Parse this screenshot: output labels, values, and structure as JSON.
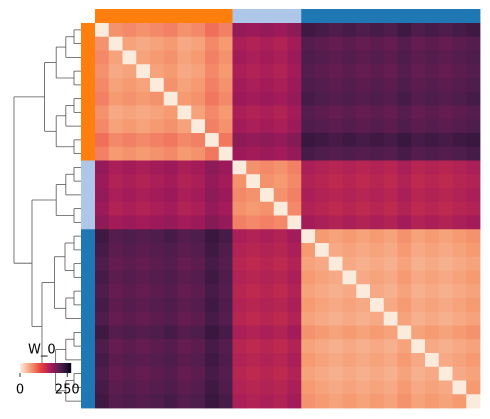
{
  "chart_data": {
    "type": "heatmap",
    "colorbar_label": "W_0",
    "clim": [
      0,
      270
    ],
    "cticks": [
      0,
      250
    ],
    "colormap": [
      "#faebdd",
      "#f69c73",
      "#e83f3f",
      "#a11a5b",
      "#4c1d4b",
      "#03051a"
    ],
    "row_colors": [
      "#ff7f0e",
      "#ff7f0e",
      "#ff7f0e",
      "#ff7f0e",
      "#ff7f0e",
      "#ff7f0e",
      "#ff7f0e",
      "#ff7f0e",
      "#ff7f0e",
      "#ff7f0e",
      "#aec7e8",
      "#aec7e8",
      "#aec7e8",
      "#aec7e8",
      "#aec7e8",
      "#1f77b4",
      "#1f77b4",
      "#1f77b4",
      "#1f77b4",
      "#1f77b4",
      "#1f77b4",
      "#1f77b4",
      "#1f77b4",
      "#1f77b4",
      "#1f77b4",
      "#1f77b4",
      "#1f77b4",
      "#1f77b4"
    ],
    "matrix": [
      [
        0,
        60,
        65,
        60,
        65,
        70,
        60,
        65,
        80,
        70,
        170,
        165,
        170,
        165,
        175,
        225,
        220,
        215,
        220,
        215,
        220,
        215,
        225,
        215,
        220,
        215,
        220,
        225
      ],
      [
        60,
        0,
        50,
        45,
        50,
        55,
        45,
        50,
        65,
        55,
        155,
        150,
        155,
        150,
        160,
        210,
        205,
        200,
        205,
        200,
        205,
        200,
        210,
        200,
        205,
        200,
        205,
        210
      ],
      [
        65,
        50,
        0,
        50,
        55,
        60,
        50,
        55,
        70,
        60,
        160,
        155,
        160,
        155,
        165,
        215,
        210,
        205,
        210,
        205,
        210,
        205,
        215,
        205,
        210,
        205,
        210,
        215
      ],
      [
        60,
        45,
        50,
        0,
        50,
        55,
        45,
        50,
        65,
        55,
        155,
        150,
        155,
        150,
        160,
        210,
        205,
        200,
        205,
        200,
        205,
        200,
        210,
        200,
        205,
        200,
        205,
        210
      ],
      [
        65,
        50,
        55,
        50,
        0,
        60,
        50,
        55,
        70,
        60,
        160,
        155,
        160,
        155,
        165,
        215,
        210,
        205,
        210,
        205,
        210,
        205,
        215,
        205,
        210,
        205,
        210,
        215
      ],
      [
        70,
        55,
        60,
        55,
        60,
        0,
        55,
        60,
        75,
        65,
        165,
        160,
        165,
        160,
        170,
        220,
        215,
        210,
        215,
        210,
        215,
        210,
        220,
        210,
        215,
        210,
        215,
        220
      ],
      [
        60,
        45,
        50,
        45,
        50,
        55,
        0,
        50,
        65,
        55,
        155,
        150,
        155,
        150,
        160,
        210,
        205,
        200,
        205,
        200,
        205,
        200,
        210,
        200,
        205,
        200,
        205,
        210
      ],
      [
        65,
        50,
        55,
        50,
        55,
        60,
        50,
        0,
        70,
        60,
        160,
        155,
        160,
        155,
        165,
        215,
        210,
        205,
        210,
        205,
        210,
        205,
        215,
        205,
        210,
        205,
        210,
        215
      ],
      [
        80,
        65,
        70,
        65,
        70,
        75,
        65,
        70,
        0,
        75,
        175,
        170,
        175,
        170,
        180,
        230,
        225,
        220,
        225,
        220,
        225,
        220,
        230,
        220,
        225,
        220,
        225,
        230
      ],
      [
        70,
        55,
        60,
        55,
        60,
        65,
        55,
        60,
        75,
        0,
        165,
        160,
        165,
        160,
        170,
        220,
        215,
        210,
        215,
        210,
        215,
        210,
        220,
        210,
        215,
        210,
        215,
        220
      ],
      [
        170,
        155,
        160,
        155,
        160,
        165,
        155,
        160,
        175,
        165,
        0,
        60,
        65,
        60,
        70,
        155,
        150,
        145,
        150,
        145,
        150,
        145,
        155,
        145,
        150,
        145,
        150,
        155
      ],
      [
        165,
        150,
        155,
        150,
        155,
        160,
        150,
        155,
        170,
        160,
        60,
        0,
        60,
        55,
        65,
        150,
        145,
        140,
        145,
        140,
        145,
        140,
        150,
        140,
        145,
        140,
        145,
        150
      ],
      [
        170,
        155,
        160,
        155,
        160,
        165,
        155,
        160,
        175,
        165,
        65,
        60,
        0,
        60,
        70,
        155,
        150,
        145,
        150,
        145,
        150,
        145,
        155,
        145,
        150,
        145,
        150,
        155
      ],
      [
        165,
        150,
        155,
        150,
        155,
        160,
        150,
        155,
        170,
        160,
        60,
        55,
        60,
        0,
        65,
        150,
        145,
        140,
        145,
        140,
        145,
        140,
        150,
        140,
        145,
        140,
        145,
        150
      ],
      [
        175,
        160,
        165,
        160,
        165,
        170,
        160,
        165,
        180,
        170,
        70,
        65,
        70,
        65,
        0,
        160,
        155,
        150,
        155,
        150,
        155,
        150,
        160,
        150,
        155,
        150,
        155,
        160
      ],
      [
        225,
        210,
        215,
        210,
        215,
        220,
        210,
        215,
        230,
        220,
        155,
        150,
        155,
        150,
        160,
        0,
        55,
        50,
        55,
        50,
        55,
        50,
        60,
        50,
        55,
        50,
        55,
        60
      ],
      [
        220,
        205,
        210,
        205,
        210,
        215,
        205,
        210,
        225,
        215,
        150,
        145,
        150,
        145,
        155,
        55,
        0,
        45,
        50,
        45,
        50,
        45,
        55,
        45,
        50,
        45,
        50,
        55
      ],
      [
        215,
        200,
        205,
        200,
        205,
        210,
        200,
        205,
        220,
        210,
        145,
        140,
        145,
        140,
        150,
        50,
        45,
        0,
        45,
        40,
        45,
        40,
        50,
        40,
        45,
        40,
        45,
        50
      ],
      [
        220,
        205,
        210,
        205,
        210,
        215,
        205,
        210,
        225,
        215,
        150,
        145,
        150,
        145,
        155,
        55,
        50,
        45,
        0,
        45,
        50,
        45,
        55,
        45,
        50,
        45,
        50,
        55
      ],
      [
        215,
        200,
        205,
        200,
        205,
        210,
        200,
        205,
        220,
        210,
        145,
        140,
        145,
        140,
        150,
        50,
        45,
        40,
        45,
        0,
        45,
        40,
        50,
        40,
        45,
        40,
        45,
        50
      ],
      [
        220,
        205,
        210,
        205,
        210,
        215,
        205,
        210,
        225,
        215,
        150,
        145,
        150,
        145,
        155,
        55,
        50,
        45,
        50,
        45,
        0,
        45,
        55,
        45,
        50,
        45,
        50,
        55
      ],
      [
        215,
        200,
        205,
        200,
        205,
        210,
        200,
        205,
        220,
        210,
        145,
        140,
        145,
        140,
        150,
        50,
        45,
        40,
        45,
        40,
        45,
        0,
        50,
        40,
        45,
        40,
        45,
        50
      ],
      [
        225,
        210,
        215,
        210,
        215,
        220,
        210,
        215,
        230,
        220,
        155,
        150,
        155,
        150,
        160,
        60,
        55,
        50,
        55,
        50,
        55,
        50,
        0,
        50,
        55,
        50,
        55,
        60
      ],
      [
        215,
        200,
        205,
        200,
        205,
        210,
        200,
        205,
        220,
        210,
        145,
        140,
        145,
        140,
        150,
        50,
        45,
        40,
        45,
        40,
        45,
        40,
        50,
        0,
        45,
        40,
        45,
        50
      ],
      [
        220,
        205,
        210,
        205,
        210,
        215,
        205,
        210,
        225,
        215,
        150,
        145,
        150,
        145,
        155,
        55,
        50,
        45,
        50,
        45,
        50,
        45,
        55,
        45,
        0,
        45,
        50,
        55
      ],
      [
        215,
        200,
        205,
        200,
        205,
        210,
        200,
        205,
        220,
        210,
        145,
        140,
        145,
        140,
        150,
        50,
        45,
        40,
        45,
        40,
        45,
        40,
        50,
        40,
        45,
        0,
        45,
        50
      ],
      [
        220,
        205,
        210,
        205,
        210,
        215,
        205,
        210,
        225,
        215,
        150,
        145,
        150,
        145,
        155,
        55,
        50,
        45,
        50,
        45,
        50,
        45,
        55,
        45,
        50,
        45,
        0,
        55
      ],
      [
        225,
        210,
        215,
        210,
        215,
        220,
        210,
        215,
        230,
        220,
        155,
        150,
        155,
        150,
        160,
        60,
        55,
        50,
        55,
        50,
        55,
        50,
        60,
        50,
        55,
        50,
        55,
        0
      ]
    ]
  }
}
